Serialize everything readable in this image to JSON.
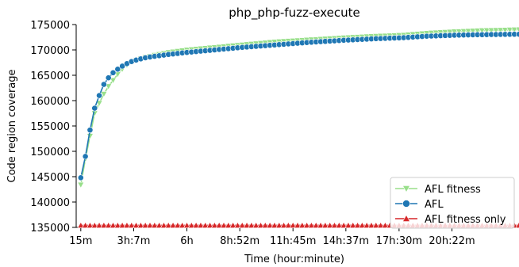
{
  "chart_data": {
    "type": "line",
    "title": "php_php-fuzz-execute",
    "xlabel": "Time (hour:minute)",
    "ylabel": "Code region coverage",
    "x_tick_labels": [
      "15m",
      "3h:7m",
      "6h",
      "8h:52m",
      "11h:45m",
      "14h:37m",
      "17h:30m",
      "20h:22m"
    ],
    "x_tick_minutes": [
      15,
      187,
      360,
      532,
      705,
      877,
      1050,
      1222
    ],
    "xlim_minutes": [
      0,
      1440
    ],
    "y_ticks": [
      135000,
      140000,
      145000,
      150000,
      155000,
      160000,
      165000,
      170000,
      175000
    ],
    "ylim": [
      135000,
      175000
    ],
    "grid": false,
    "legend_position": "lower-right",
    "series": [
      {
        "name": "AFL fitness",
        "color": "#98df8a",
        "marker": "triangle-down",
        "anchors": [
          [
            15,
            143400
          ],
          [
            30,
            148500
          ],
          [
            45,
            153000
          ],
          [
            60,
            157500
          ],
          [
            75,
            159500
          ],
          [
            90,
            161300
          ],
          [
            105,
            162800
          ],
          [
            120,
            164000
          ],
          [
            135,
            165200
          ],
          [
            150,
            166200
          ],
          [
            165,
            167000
          ],
          [
            180,
            167600
          ],
          [
            195,
            168000
          ],
          [
            220,
            168500
          ],
          [
            250,
            168900
          ],
          [
            300,
            169500
          ],
          [
            360,
            170000
          ],
          [
            450,
            170500
          ],
          [
            540,
            171000
          ],
          [
            650,
            171600
          ],
          [
            760,
            172000
          ],
          [
            870,
            172400
          ],
          [
            970,
            172700
          ],
          [
            1060,
            172900
          ],
          [
            1140,
            173300
          ],
          [
            1230,
            173600
          ],
          [
            1310,
            173800
          ],
          [
            1440,
            174000
          ]
        ]
      },
      {
        "name": "AFL",
        "color": "#1f77b4",
        "marker": "circle",
        "anchors": [
          [
            15,
            144800
          ],
          [
            30,
            149000
          ],
          [
            45,
            154200
          ],
          [
            60,
            158500
          ],
          [
            75,
            161000
          ],
          [
            90,
            163200
          ],
          [
            105,
            164500
          ],
          [
            120,
            165500
          ],
          [
            135,
            166200
          ],
          [
            150,
            166800
          ],
          [
            165,
            167300
          ],
          [
            180,
            167700
          ],
          [
            195,
            168000
          ],
          [
            220,
            168400
          ],
          [
            250,
            168700
          ],
          [
            300,
            169100
          ],
          [
            360,
            169500
          ],
          [
            450,
            170000
          ],
          [
            540,
            170500
          ],
          [
            650,
            171000
          ],
          [
            760,
            171500
          ],
          [
            870,
            171900
          ],
          [
            970,
            172200
          ],
          [
            1060,
            172400
          ],
          [
            1140,
            172700
          ],
          [
            1230,
            172900
          ],
          [
            1310,
            173000
          ],
          [
            1440,
            173100
          ]
        ]
      },
      {
        "name": "AFL fitness only",
        "color": "#d62728",
        "marker": "triangle-up",
        "anchors": [
          [
            15,
            135400
          ],
          [
            1440,
            135400
          ]
        ]
      }
    ]
  }
}
